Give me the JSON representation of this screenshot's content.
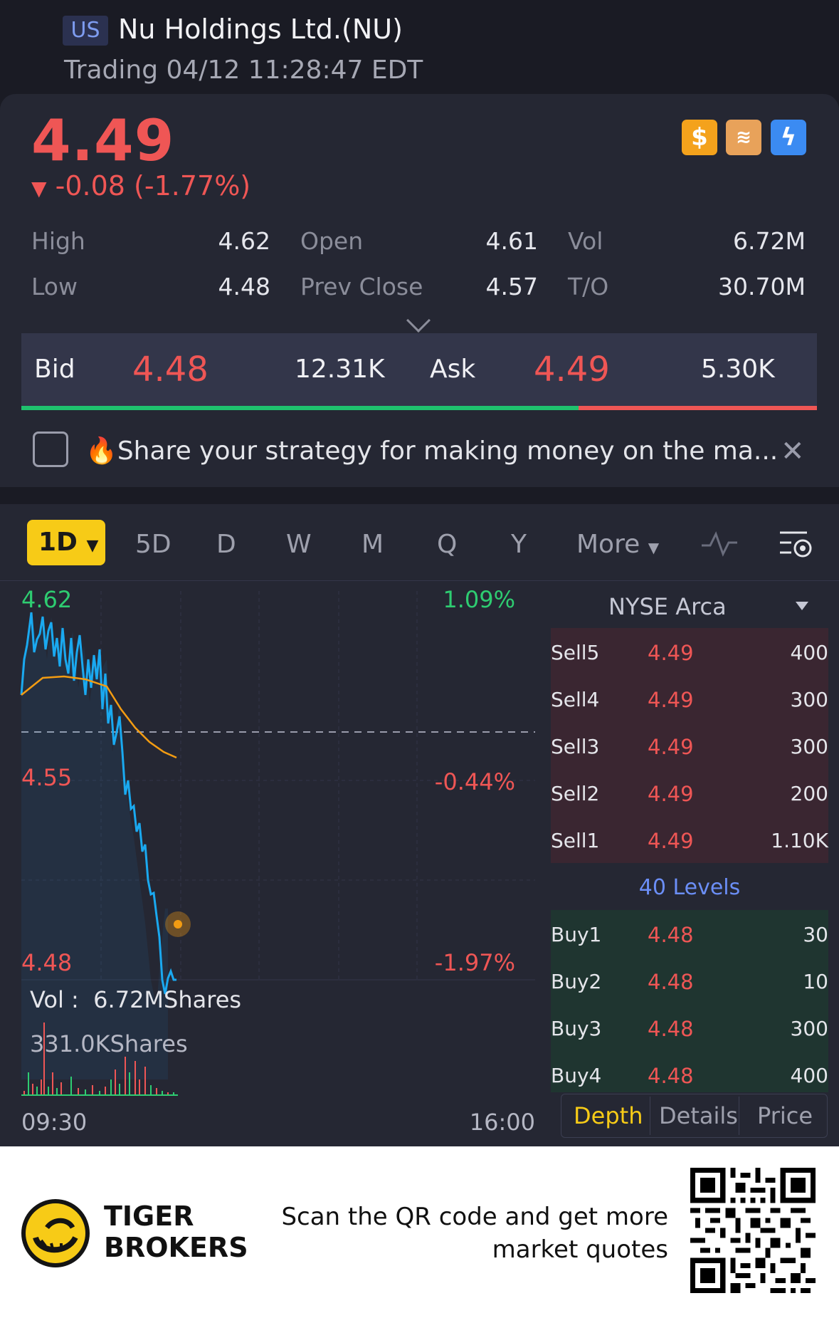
{
  "header": {
    "market": "US",
    "name": "Nu Holdings Ltd.(NU)",
    "status": "Trading 04/12 11:28:47 EDT"
  },
  "quote": {
    "price": "4.49",
    "change": "-0.08 (-1.77%)",
    "badges": [
      "dollar-icon",
      "layers-a-icon",
      "lightning-1-icon"
    ],
    "stats": {
      "high_label": "High",
      "high": "4.62",
      "low_label": "Low",
      "low": "4.48",
      "open_label": "Open",
      "open": "4.61",
      "prev_label": "Prev Close",
      "prev": "4.57",
      "vol_label": "Vol",
      "vol": "6.72M",
      "to_label": "T/O",
      "to": "30.70M"
    }
  },
  "bidask": {
    "bid_label": "Bid",
    "bid": "4.48",
    "bid_size": "12.31K",
    "ask_label": "Ask",
    "ask": "4.49",
    "ask_size": "5.30K",
    "bid_fraction": 0.7
  },
  "promo": {
    "text": "🔥Share your strategy for making money on the ma..."
  },
  "tabs": {
    "active": "1D",
    "items": [
      "5D",
      "D",
      "W",
      "M",
      "Q",
      "Y"
    ],
    "more": "More"
  },
  "chart": {
    "price_high": "4.62",
    "price_mid": "4.55",
    "price_low": "4.48",
    "pct_high": "1.09%",
    "pct_mid": "-0.44%",
    "pct_low": "-1.97%",
    "vol_label": "Vol :",
    "vol_value": "6.72MShares",
    "vol_scale": "331.0KShares",
    "time_start": "09:30",
    "time_end": "16:00",
    "colors": {
      "price_line": "#1aa9f0",
      "avg_line": "#f39c12",
      "up": "#2ecc71",
      "down": "#ef5655"
    }
  },
  "orderbook": {
    "exchange": "NYSE Arca",
    "sells": [
      {
        "name": "Sell5",
        "price": "4.49",
        "qty": "400"
      },
      {
        "name": "Sell4",
        "price": "4.49",
        "qty": "300"
      },
      {
        "name": "Sell3",
        "price": "4.49",
        "qty": "300"
      },
      {
        "name": "Sell2",
        "price": "4.49",
        "qty": "200"
      },
      {
        "name": "Sell1",
        "price": "4.49",
        "qty": "1.10K"
      }
    ],
    "levels": "40 Levels",
    "buys": [
      {
        "name": "Buy1",
        "price": "4.48",
        "qty": "30"
      },
      {
        "name": "Buy2",
        "price": "4.48",
        "qty": "10"
      },
      {
        "name": "Buy3",
        "price": "4.48",
        "qty": "300"
      },
      {
        "name": "Buy4",
        "price": "4.48",
        "qty": "400"
      }
    ],
    "tabs": [
      "Depth",
      "Details",
      "Price"
    ]
  },
  "footer": {
    "brand_line1": "TIGER",
    "brand_line2": "BROKERS",
    "scan_line1": "Scan the QR code and get more",
    "scan_line2": "market quotes"
  }
}
